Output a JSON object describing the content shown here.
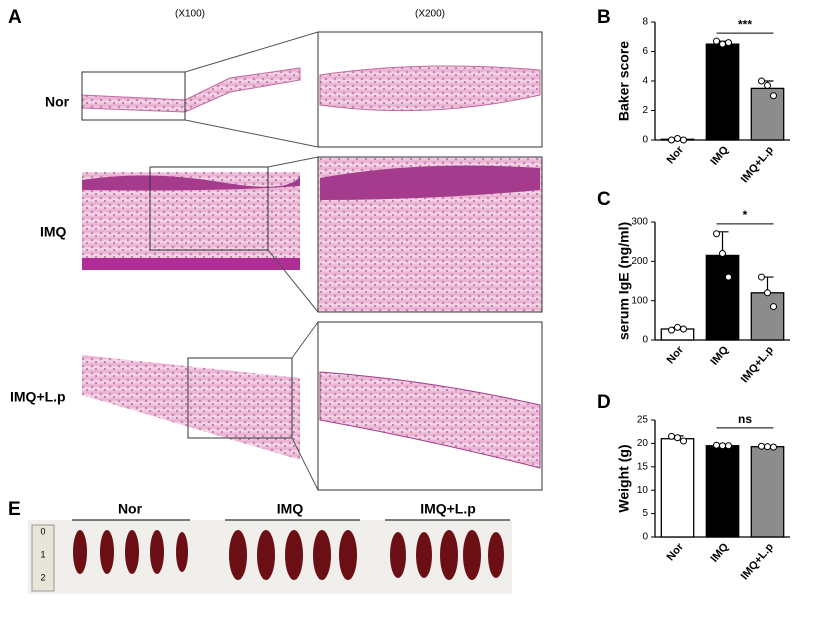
{
  "panel_labels": [
    "A",
    "B",
    "C",
    "D",
    "E"
  ],
  "histology": {
    "columns": [
      "(X100)",
      "(X200)"
    ],
    "rows": [
      "Nor",
      "IMQ",
      "IMQ+L.p"
    ]
  },
  "spleen": {
    "groups": [
      "Nor",
      "IMQ",
      "IMQ+L.p"
    ],
    "ruler": [
      "0",
      "1",
      "2"
    ]
  },
  "chart_data": [
    {
      "type": "bar",
      "ylabel": "Baker score",
      "categories": [
        "Nor",
        "IMQ",
        "IMQ+L.p"
      ],
      "values": [
        0.05,
        6.5,
        3.5
      ],
      "errors": [
        0.05,
        0.2,
        0.5
      ],
      "points": [
        [
          0,
          0.1,
          0
        ],
        [
          6.7,
          6.5,
          6.6
        ],
        [
          4,
          3.7,
          3
        ]
      ],
      "colors": [
        "#ffffff",
        "#000000",
        "#8c8c8c"
      ],
      "ylim": [
        0,
        8
      ],
      "yticks": [
        0,
        2,
        4,
        6,
        8
      ],
      "annotation": "***"
    },
    {
      "type": "bar",
      "ylabel": "serum IgE (ng/ml)",
      "categories": [
        "Nor",
        "IMQ",
        "IMQ+L.p"
      ],
      "values": [
        28,
        215,
        120
      ],
      "errors": [
        4,
        60,
        40
      ],
      "points": [
        [
          25,
          32,
          28
        ],
        [
          270,
          220,
          160
        ],
        [
          160,
          120,
          85
        ]
      ],
      "colors": [
        "#ffffff",
        "#000000",
        "#8c8c8c"
      ],
      "ylim": [
        0,
        300
      ],
      "yticks": [
        0,
        100,
        200,
        300
      ],
      "annotation": "*"
    },
    {
      "type": "bar",
      "ylabel": "Weight (g)",
      "categories": [
        "Nor",
        "IMQ",
        "IMQ+L.p"
      ],
      "values": [
        21,
        19.5,
        19.3
      ],
      "errors": [
        0.6,
        0.1,
        0.2
      ],
      "points": [
        [
          21.5,
          21.2,
          20.5
        ],
        [
          19.6,
          19.5,
          19.5
        ],
        [
          19.4,
          19.3,
          19.2
        ]
      ],
      "colors": [
        "#ffffff",
        "#000000",
        "#8c8c8c"
      ],
      "ylim": [
        0,
        25
      ],
      "yticks": [
        0,
        5,
        10,
        15,
        20,
        25
      ],
      "annotation": "ns"
    }
  ]
}
